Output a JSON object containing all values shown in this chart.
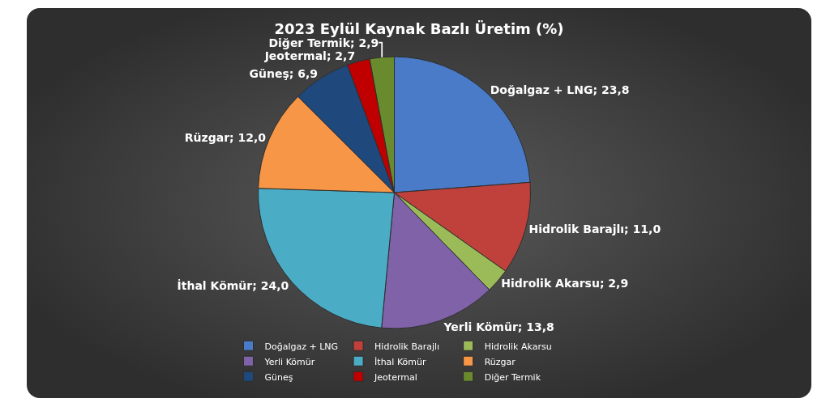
{
  "chart_data": {
    "type": "pie",
    "title": "2023 Eylül Kaynak Bazlı Üretim (%)",
    "categories": [
      "Doğalgaz + LNG",
      "Hidrolik Barajlı",
      "Hidrolik Akarsu",
      "Yerli Kömür",
      "İthal Kömür",
      "Rüzgar",
      "Güneş",
      "Jeotermal",
      "Diğer Termik"
    ],
    "values": [
      23.8,
      11.0,
      2.9,
      13.8,
      24.0,
      12.0,
      6.9,
      2.7,
      2.9
    ],
    "value_labels": [
      "Doğalgaz + LNG; 23,8",
      "Hidrolik Barajlı; 11,0",
      "Hidrolik Akarsu; 2,9",
      "Yerli Kömür; 13,8",
      "İthal Kömür; 24,0",
      "Rüzgar; 12,0",
      "Güneş; 6,9",
      "Jeotermal; 2,7",
      "Diğer Termik; 2,9"
    ],
    "colors": [
      "#4a7bc8",
      "#c0413c",
      "#9bbb59",
      "#7f62a8",
      "#4bacc6",
      "#f79646",
      "#1f497d",
      "#c00000",
      "#6a8a2e"
    ],
    "legend": "bottom"
  }
}
